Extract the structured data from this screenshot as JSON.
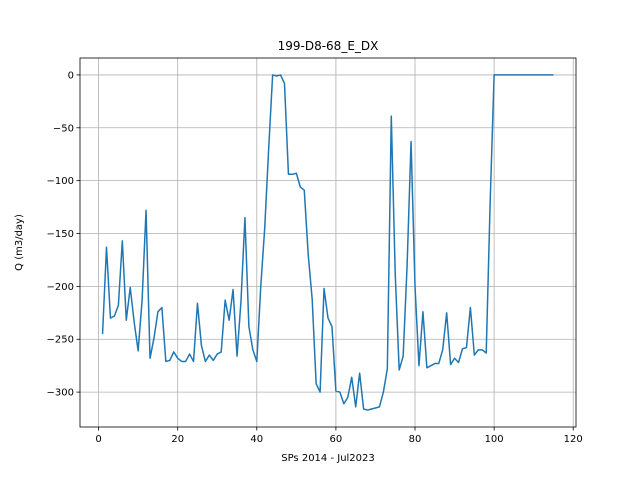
{
  "chart_data": {
    "type": "line",
    "title": "199-D8-68_E_DX",
    "xlabel": "SPs 2014 - Jul2023",
    "ylabel": "Q (m3/day)",
    "xlim": [
      -4.7,
      120.7
    ],
    "ylim": [
      -333,
      16
    ],
    "xticks": [
      0,
      20,
      40,
      60,
      80,
      100,
      120
    ],
    "yticks": [
      0,
      -50,
      -100,
      -150,
      -200,
      -250,
      -300
    ],
    "grid": true,
    "series": [
      {
        "color": "#1f77b4",
        "x": [
          1,
          2,
          3,
          4,
          5,
          6,
          7,
          8,
          9,
          10,
          11,
          12,
          13,
          14,
          15,
          16,
          17,
          18,
          19,
          20,
          21,
          22,
          23,
          24,
          25,
          26,
          27,
          28,
          29,
          30,
          31,
          32,
          33,
          34,
          35,
          36,
          37,
          38,
          39,
          40,
          41,
          42,
          43,
          44,
          45,
          46,
          47,
          48,
          49,
          50,
          51,
          52,
          53,
          54,
          55,
          56,
          57,
          58,
          59,
          60,
          61,
          62,
          63,
          64,
          65,
          66,
          67,
          68,
          69,
          70,
          71,
          72,
          73,
          74,
          75,
          76,
          77,
          78,
          79,
          80,
          81,
          82,
          83,
          84,
          85,
          86,
          87,
          88,
          89,
          90,
          91,
          92,
          93,
          94,
          95,
          96,
          97,
          98,
          99,
          100,
          101,
          102,
          103,
          104,
          105,
          106,
          107,
          108,
          109,
          110,
          111,
          112,
          113,
          114,
          115
        ],
        "y": [
          -245,
          -163,
          -230,
          -228,
          -218,
          -157,
          -232,
          -201,
          -234,
          -261,
          -213,
          -128,
          -268,
          -249,
          -224,
          -220,
          -271,
          -270,
          -262,
          -268,
          -271,
          -271,
          -264,
          -271,
          -216,
          -256,
          -271,
          -265,
          -270,
          -264,
          -262,
          -213,
          -232,
          -203,
          -266,
          -214,
          -135,
          -238,
          -260,
          -271,
          -200,
          -145,
          -70,
          0,
          -1,
          0,
          -8,
          -94,
          -94,
          -93,
          -106,
          -109,
          -170,
          -212,
          -292,
          -300,
          -202,
          -230,
          -238,
          -299,
          -300,
          -311,
          -305,
          -286,
          -314,
          -282,
          -316,
          -317,
          -316,
          -315,
          -314,
          -300,
          -278,
          -39,
          -189,
          -279,
          -266,
          -180,
          -63,
          -200,
          -275,
          -224,
          -277,
          -275,
          -273,
          -273,
          -260,
          -225,
          -274,
          -268,
          -272,
          -259,
          -258,
          -220,
          -265,
          -260,
          -260,
          -263,
          -120,
          0,
          0,
          0,
          0,
          0,
          0,
          0,
          0,
          0,
          0,
          0,
          0,
          0,
          0,
          0,
          0
        ]
      }
    ]
  }
}
